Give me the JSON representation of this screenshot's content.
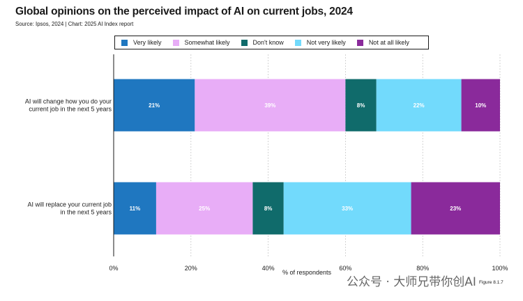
{
  "header": {
    "title": "Global opinions on the perceived impact of AI on current jobs, 2024",
    "source": "Source: Ipsos, 2024 | Chart: 2025 AI Index report"
  },
  "figure_label": "Figure 8.1.7",
  "watermark": "公众号 · 大师兄带你创AI",
  "colors": {
    "very_likely": "#1f77c0",
    "somewhat_likely": "#e8adf7",
    "dont_know": "#106b6b",
    "not_very_likely": "#72dafc",
    "not_at_all_likely": "#8a2a9b"
  },
  "chart_data": {
    "type": "bar",
    "orientation": "horizontal",
    "stacked": true,
    "title": "Global opinions on the perceived impact of AI on current jobs, 2024",
    "xlabel": "% of respondents",
    "xlim": [
      0,
      100
    ],
    "xticks": [
      "0%",
      "20%",
      "40%",
      "60%",
      "80%",
      "100%"
    ],
    "grid": true,
    "legend_position": "top",
    "categories": [
      [
        "AI will change how you do your",
        "current job in the next 5 years"
      ],
      [
        "AI will replace your current job",
        "in the next 5 years"
      ]
    ],
    "series": [
      {
        "name": "Very likely",
        "color": "#1f77c0",
        "values": [
          21,
          11
        ],
        "labels": [
          "21%",
          "11%"
        ]
      },
      {
        "name": "Somewhat likely",
        "color": "#e8adf7",
        "values": [
          39,
          25
        ],
        "labels": [
          "39%",
          "25%"
        ]
      },
      {
        "name": "Don't know",
        "color": "#106b6b",
        "values": [
          8,
          8
        ],
        "labels": [
          "8%",
          "8%"
        ]
      },
      {
        "name": "Not very likely",
        "color": "#72dafc",
        "values": [
          22,
          33
        ],
        "labels": [
          "22%",
          "33%"
        ]
      },
      {
        "name": "Not at all likely",
        "color": "#8a2a9b",
        "values": [
          10,
          23
        ],
        "labels": [
          "10%",
          "23%"
        ]
      }
    ]
  }
}
